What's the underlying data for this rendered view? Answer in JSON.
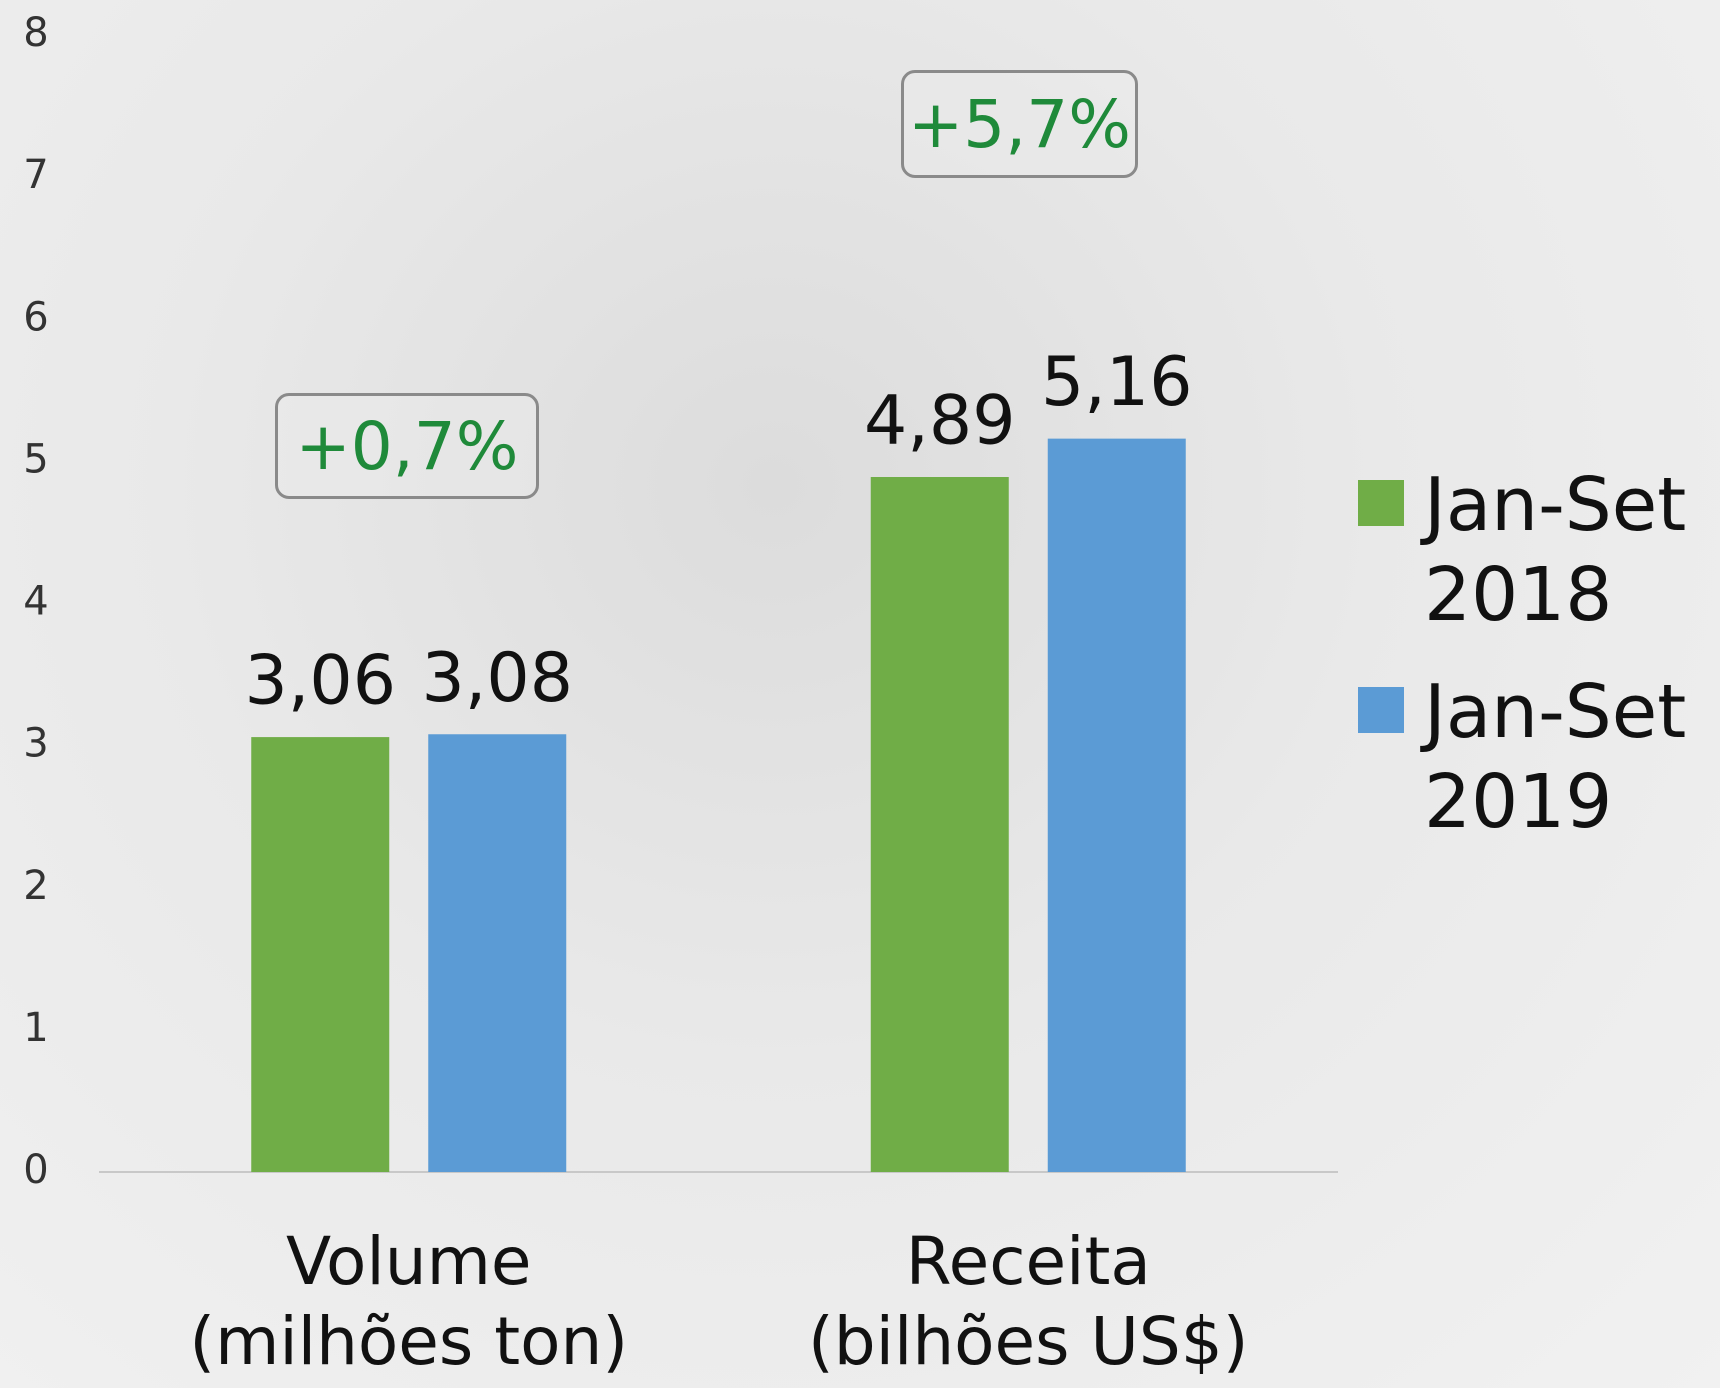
{
  "chart_data": {
    "type": "bar",
    "categories": [
      "Volume (milhões ton)",
      "Receita (bilhões US$)"
    ],
    "series": [
      {
        "name": "Jan-Set 2018",
        "color": "#70ad47",
        "values": [
          3.06,
          4.89
        ],
        "value_labels": [
          "3,06",
          "4,89"
        ]
      },
      {
        "name": "Jan-Set 2019",
        "color": "#5b9bd5",
        "values": [
          3.08,
          5.16
        ],
        "value_labels": [
          "3,08",
          "5,16"
        ]
      }
    ],
    "annotations": [
      "+0,7%",
      "+5,7%"
    ],
    "ylim": [
      0,
      8
    ],
    "yticks": [
      0,
      1,
      2,
      3,
      4,
      5,
      6,
      7,
      8
    ],
    "grid": false,
    "legend": "right"
  }
}
